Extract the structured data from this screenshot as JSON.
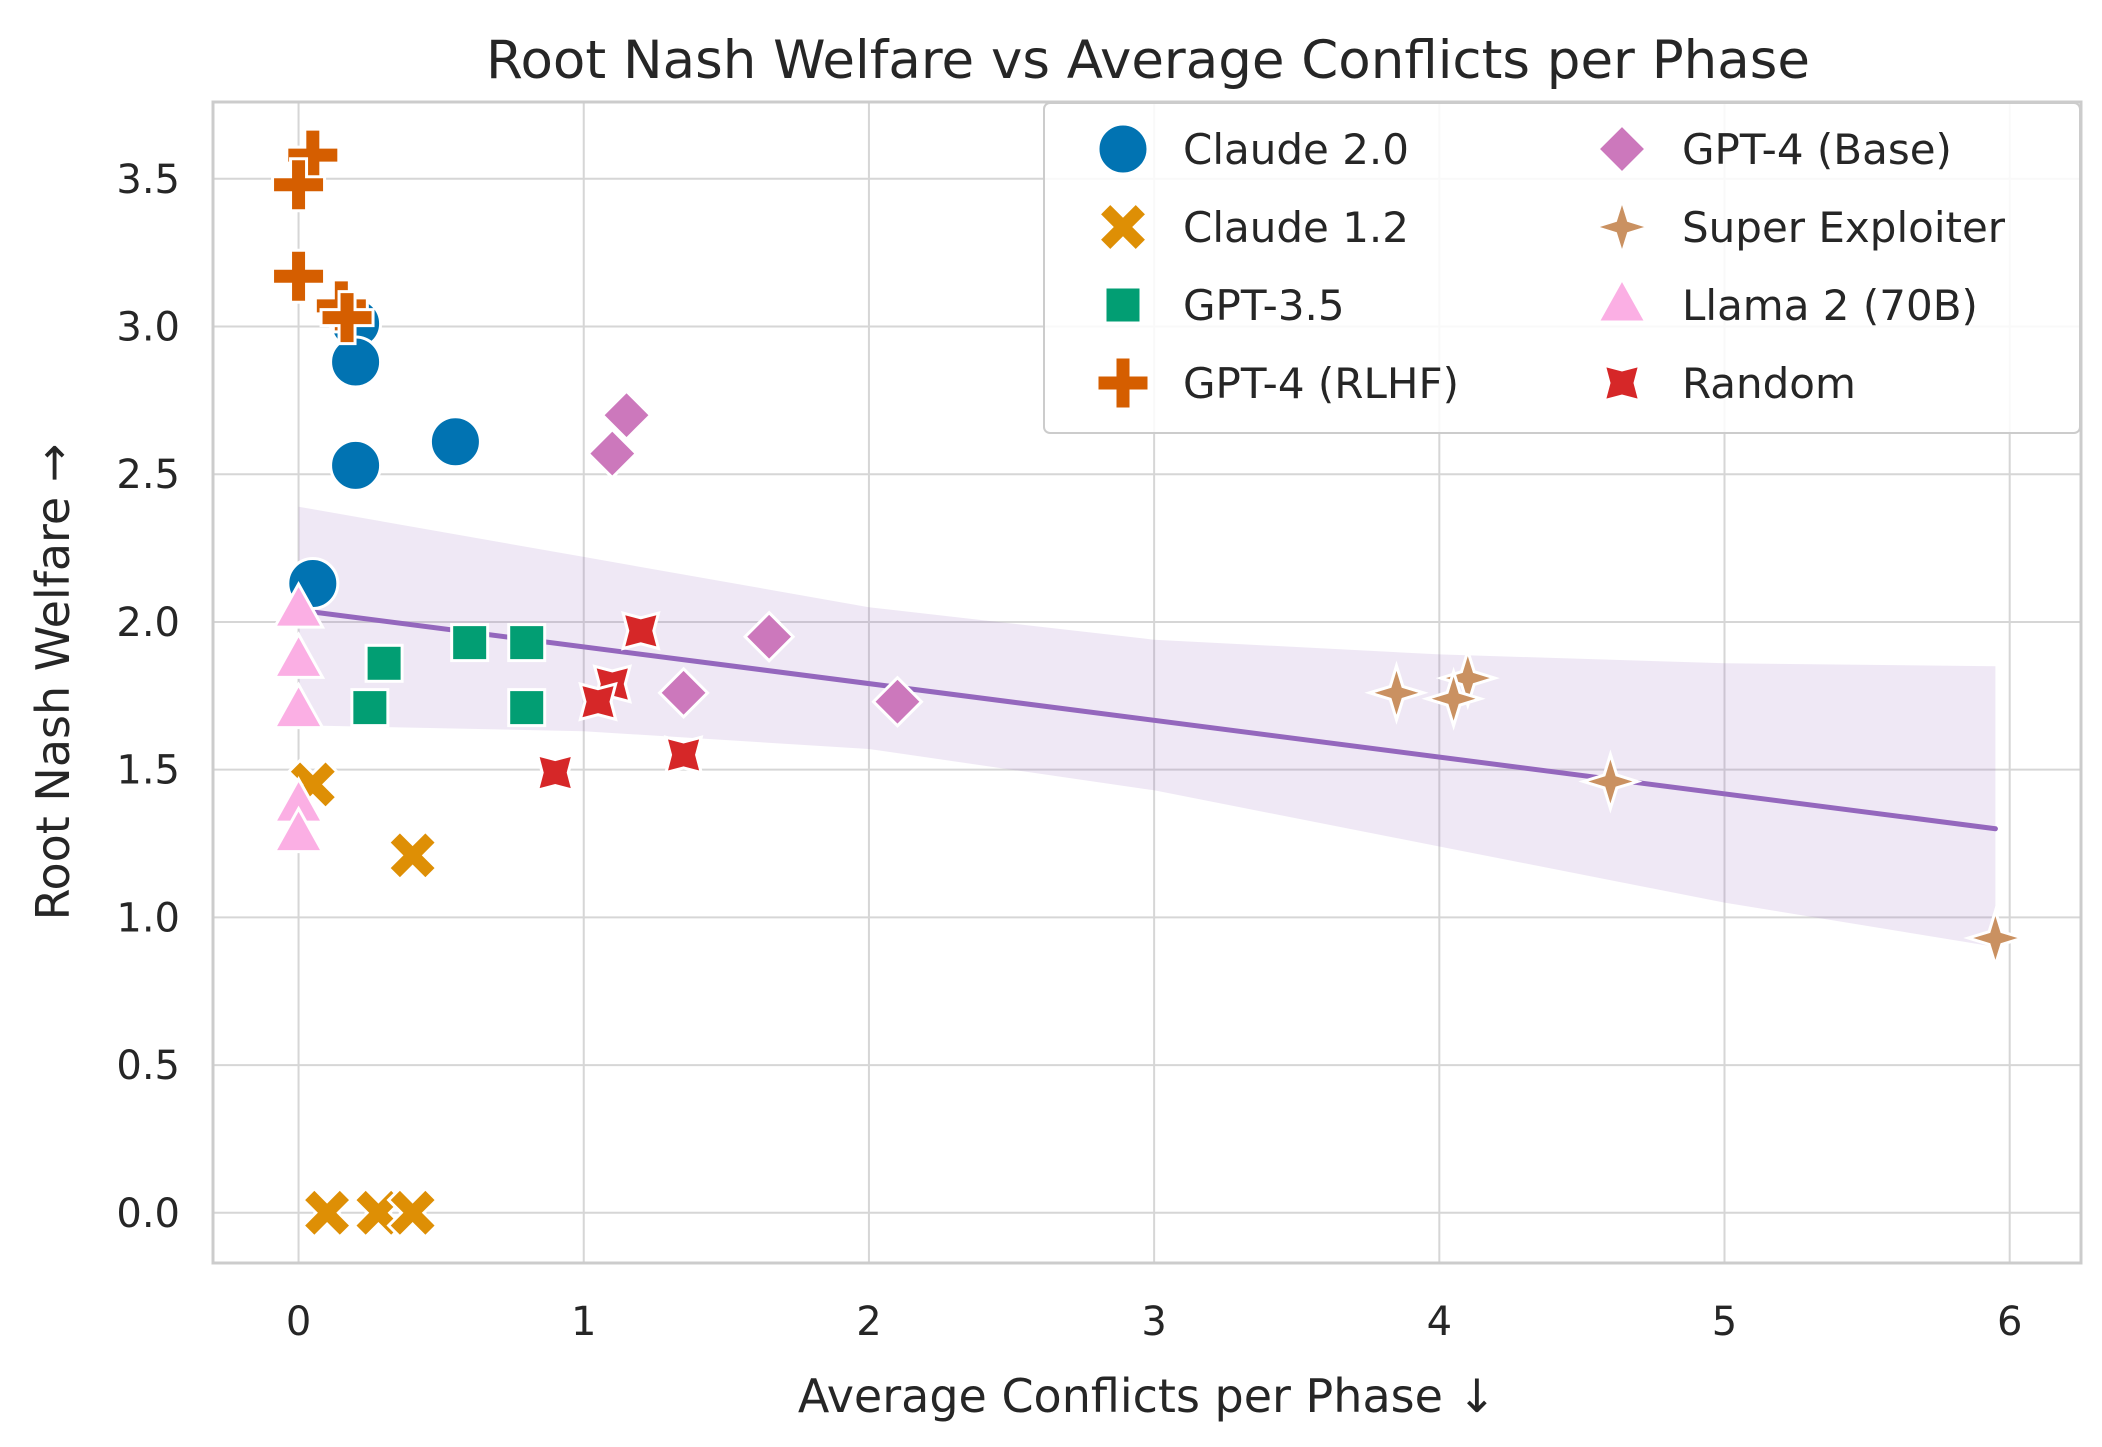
{
  "chart_data": {
    "type": "scatter",
    "title": "Root Nash Welfare vs Average Conflicts per Phase",
    "xlabel": "Average Conflicts per Phase ↓",
    "ylabel": "Root Nash Welfare →",
    "xlim": [
      -0.3,
      6.25
    ],
    "ylim": [
      -0.17,
      3.76
    ],
    "xticks": [
      0,
      1,
      2,
      3,
      4,
      5,
      6
    ],
    "yticks": [
      0.0,
      0.5,
      1.0,
      1.5,
      2.0,
      2.5,
      3.0,
      3.5
    ],
    "xtick_labels": [
      "0",
      "1",
      "2",
      "3",
      "4",
      "5",
      "6"
    ],
    "ytick_labels": [
      "0.0",
      "0.5",
      "1.0",
      "1.5",
      "2.0",
      "2.5",
      "3.0",
      "3.5"
    ],
    "grid": true,
    "legend_position": "top-right",
    "legend_columns": 2,
    "series": [
      {
        "name": "Claude 2.0",
        "marker": "circle",
        "color": "#0173b2",
        "points": [
          [
            0.2,
            3.01
          ],
          [
            0.2,
            2.88
          ],
          [
            0.55,
            2.61
          ],
          [
            0.2,
            2.53
          ],
          [
            0.05,
            2.13
          ]
        ]
      },
      {
        "name": "Claude 1.2",
        "marker": "x",
        "color": "#de8f05",
        "points": [
          [
            0.05,
            1.45
          ],
          [
            0.4,
            1.21
          ],
          [
            0.1,
            0.0
          ],
          [
            0.28,
            0.0
          ],
          [
            0.4,
            0.0
          ]
        ]
      },
      {
        "name": "GPT-3.5",
        "marker": "square",
        "color": "#029e73",
        "points": [
          [
            0.6,
            1.93
          ],
          [
            0.8,
            1.93
          ],
          [
            0.3,
            1.86
          ],
          [
            0.25,
            1.71
          ],
          [
            0.8,
            1.71
          ]
        ]
      },
      {
        "name": "GPT-4 (RLHF)",
        "marker": "plus",
        "color": "#d55e00",
        "points": [
          [
            0.05,
            3.58
          ],
          [
            0.0,
            3.48
          ],
          [
            0.0,
            3.17
          ],
          [
            0.15,
            3.07
          ],
          [
            0.17,
            3.03
          ]
        ]
      },
      {
        "name": "GPT-4 (Base)",
        "marker": "diamond",
        "color": "#cc78bc",
        "points": [
          [
            1.15,
            2.7
          ],
          [
            1.1,
            2.57
          ],
          [
            1.65,
            1.95
          ],
          [
            1.35,
            1.76
          ],
          [
            2.1,
            1.73
          ]
        ]
      },
      {
        "name": "Super Exploiter",
        "marker": "star4",
        "color": "#ca9161",
        "points": [
          [
            4.1,
            1.81
          ],
          [
            3.85,
            1.76
          ],
          [
            4.05,
            1.74
          ],
          [
            4.6,
            1.46
          ],
          [
            5.95,
            0.93
          ]
        ]
      },
      {
        "name": "Llama 2 (70B)",
        "marker": "triangle",
        "color": "#fbafe4",
        "points": [
          [
            0.0,
            2.04
          ],
          [
            0.0,
            1.87
          ],
          [
            0.0,
            1.7
          ],
          [
            0.0,
            1.38
          ],
          [
            0.0,
            1.28
          ]
        ]
      },
      {
        "name": "Random",
        "marker": "star4-fat",
        "color": "#d62728",
        "points": [
          [
            1.2,
            1.97
          ],
          [
            1.1,
            1.79
          ],
          [
            1.05,
            1.73
          ],
          [
            1.35,
            1.55
          ],
          [
            0.9,
            1.49
          ]
        ]
      }
    ],
    "regression": {
      "color": "#9467bd",
      "band_color": "#9467bd",
      "line": [
        [
          0.0,
          2.04
        ],
        [
          5.95,
          1.3
        ]
      ],
      "band_upper": [
        [
          0.0,
          2.39
        ],
        [
          1.0,
          2.22
        ],
        [
          2.0,
          2.05
        ],
        [
          3.0,
          1.94
        ],
        [
          4.0,
          1.89
        ],
        [
          5.0,
          1.86
        ],
        [
          5.95,
          1.85
        ]
      ],
      "band_lower": [
        [
          0.0,
          1.65
        ],
        [
          1.0,
          1.63
        ],
        [
          2.0,
          1.57
        ],
        [
          3.0,
          1.43
        ],
        [
          4.0,
          1.24
        ],
        [
          5.0,
          1.05
        ],
        [
          5.95,
          0.9
        ]
      ]
    }
  }
}
